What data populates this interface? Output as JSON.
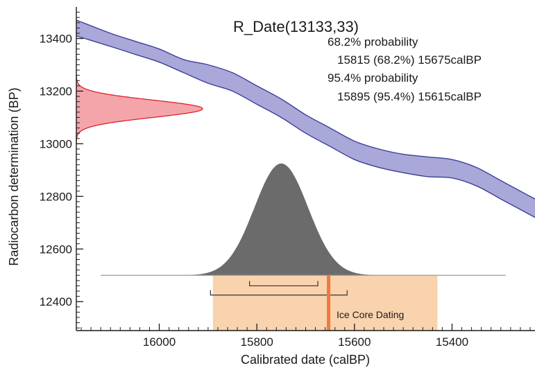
{
  "chart_data": {
    "type": "area",
    "title": "R_Date(13133,33)",
    "xlabel": "Calibrated date (calBP)",
    "ylabel": "Radiocarbon determination (BP)",
    "xlim": [
      16170,
      15230
    ],
    "ylim": [
      12290,
      13520
    ],
    "x_reversed": true,
    "x_ticks": [
      16000,
      15800,
      15600,
      15400
    ],
    "y_ticks": [
      12400,
      12600,
      12800,
      13000,
      13200,
      13400
    ],
    "stats": {
      "line1": "68.2% probability",
      "line2": "15815 (68.2%) 15675calBP",
      "line3": "95.4% probability",
      "line4": "15895 (95.4%) 15615calBP"
    },
    "calibration_curve": {
      "color_fill": "#a9a8d8",
      "color_edge": "#3b3f9a",
      "upper": [
        [
          16170,
          13470
        ],
        [
          16100,
          13420
        ],
        [
          16050,
          13390
        ],
        [
          16000,
          13360
        ],
        [
          15950,
          13320
        ],
        [
          15900,
          13300
        ],
        [
          15850,
          13270
        ],
        [
          15800,
          13220
        ],
        [
          15750,
          13170
        ],
        [
          15700,
          13110
        ],
        [
          15650,
          13060
        ],
        [
          15600,
          13010
        ],
        [
          15550,
          12980
        ],
        [
          15500,
          12960
        ],
        [
          15450,
          12950
        ],
        [
          15400,
          12940
        ],
        [
          15350,
          12910
        ],
        [
          15300,
          12860
        ],
        [
          15230,
          12790
        ]
      ],
      "lower": [
        [
          16170,
          13410
        ],
        [
          16100,
          13370
        ],
        [
          16050,
          13340
        ],
        [
          16000,
          13310
        ],
        [
          15950,
          13270
        ],
        [
          15900,
          13230
        ],
        [
          15850,
          13200
        ],
        [
          15800,
          13150
        ],
        [
          15750,
          13100
        ],
        [
          15700,
          13040
        ],
        [
          15650,
          12990
        ],
        [
          15600,
          12940
        ],
        [
          15550,
          12910
        ],
        [
          15500,
          12890
        ],
        [
          15450,
          12875
        ],
        [
          15400,
          12870
        ],
        [
          15350,
          12840
        ],
        [
          15300,
          12790
        ],
        [
          15230,
          12720
        ]
      ]
    },
    "radiocarbon_dist": {
      "mean": 13133,
      "sd": 33,
      "color_fill": "#f4a5aa",
      "color_edge": "#d8232f"
    },
    "calibrated_dist": {
      "mean": 15750,
      "sd": 55,
      "color_fill": "#6b6b6b",
      "baseline_from": 16120,
      "baseline_to": 15290
    },
    "ranges": {
      "r68": [
        15815,
        15675
      ],
      "r95": [
        15895,
        15615
      ]
    },
    "ice_core": {
      "label": "Ice Core Dating",
      "band": [
        15890,
        15430
      ],
      "line": 15653,
      "band_color": "#f9d2ae",
      "line_color": "#f07a3c"
    }
  }
}
